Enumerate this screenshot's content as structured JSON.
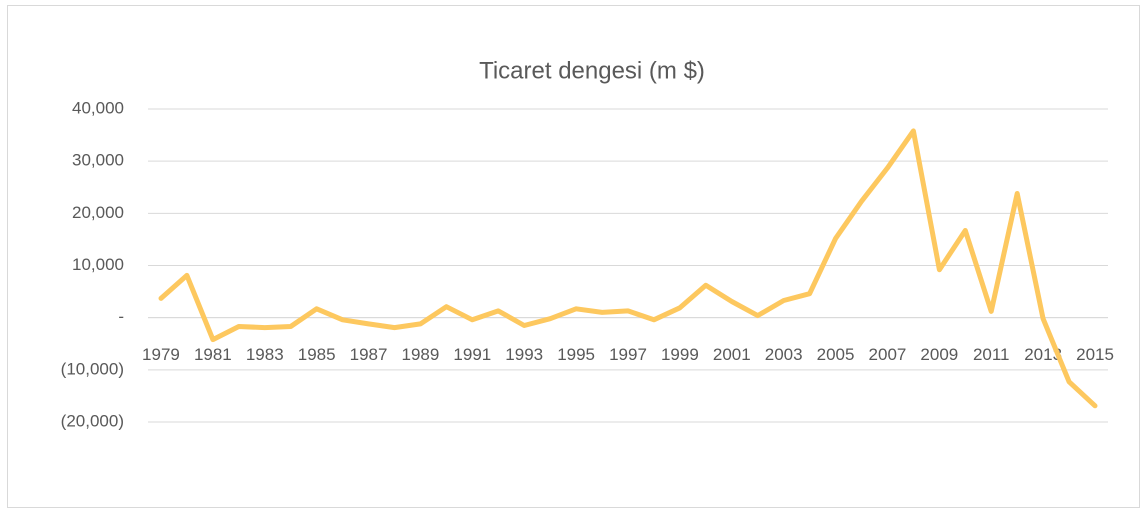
{
  "chart_data": {
    "type": "line",
    "title": "Ticaret dengesi (m $)",
    "categories": [
      "1979",
      null,
      "1981",
      null,
      "1983",
      null,
      "1985",
      null,
      "1987",
      null,
      "1989",
      null,
      "1991",
      null,
      "1993",
      null,
      "1995",
      null,
      "1997",
      null,
      "1999",
      null,
      "2001",
      null,
      "2003",
      null,
      "2005",
      null,
      "2007",
      null,
      "2009",
      null,
      "2011",
      null,
      "2013",
      null,
      "2015"
    ],
    "series": [
      {
        "name": "Ticaret dengesi (m $)",
        "color": "#fdc85f",
        "values": [
          3700,
          8100,
          -4200,
          -1700,
          -1900,
          -1700,
          1700,
          -400,
          -1200,
          -1900,
          -1200,
          2100,
          -400,
          1300,
          -1500,
          -200,
          1700,
          1000,
          1300,
          -400,
          1900,
          6200,
          3100,
          400,
          3300,
          4600,
          15200,
          22300,
          28700,
          35800,
          9200,
          16700,
          1200,
          23800,
          -200,
          -12300,
          -16900
        ]
      }
    ],
    "ylim": [
      -20000,
      40000
    ],
    "yticks": [
      {
        "value": -20000,
        "label": "(20,000)"
      },
      {
        "value": -10000,
        "label": "(10,000)"
      },
      {
        "value": 0,
        "label": "-"
      },
      {
        "value": 10000,
        "label": "10,000"
      },
      {
        "value": 20000,
        "label": "20,000"
      },
      {
        "value": 30000,
        "label": "30,000"
      },
      {
        "value": 40000,
        "label": "40,000"
      }
    ],
    "grid": true
  }
}
